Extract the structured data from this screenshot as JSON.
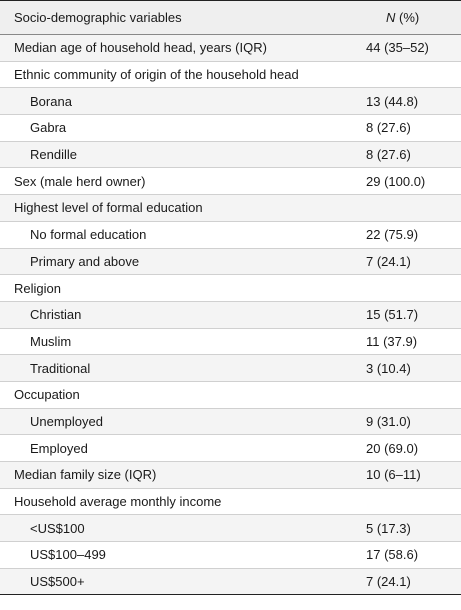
{
  "table": {
    "header": {
      "variable": "Socio-demographic variables",
      "n": "N",
      "pct": " (%)"
    },
    "rows": [
      {
        "label": "Median age of household head, years (IQR)",
        "value": "44 (35–52)"
      },
      {
        "label": "Ethnic community of origin of the household head",
        "value": ""
      },
      {
        "label": "Borana",
        "value": "13 (44.8)"
      },
      {
        "label": "Gabra",
        "value": "8 (27.6)"
      },
      {
        "label": "Rendille",
        "value": "8 (27.6)"
      },
      {
        "label": "Sex (male herd owner)",
        "value": "29 (100.0)"
      },
      {
        "label": "Highest level of formal education",
        "value": ""
      },
      {
        "label": "No formal education",
        "value": "22 (75.9)"
      },
      {
        "label": "Primary and above",
        "value": "7 (24.1)"
      },
      {
        "label": "Religion",
        "value": ""
      },
      {
        "label": "Christian",
        "value": "15 (51.7)"
      },
      {
        "label": "Muslim",
        "value": "11 (37.9)"
      },
      {
        "label": "Traditional",
        "value": "3 (10.4)"
      },
      {
        "label": "Occupation",
        "value": ""
      },
      {
        "label": "Unemployed",
        "value": "9 (31.0)"
      },
      {
        "label": "Employed",
        "value": "20 (69.0)"
      },
      {
        "label": "Median family size (IQR)",
        "value": "10 (6–11)"
      },
      {
        "label": "Household average monthly income",
        "value": ""
      },
      {
        "label": "<US$100",
        "value": "5 (17.3)"
      },
      {
        "label": "US$100–499",
        "value": "17 (58.6)"
      },
      {
        "label": "US$500+",
        "value": "7 (24.1)"
      }
    ]
  }
}
